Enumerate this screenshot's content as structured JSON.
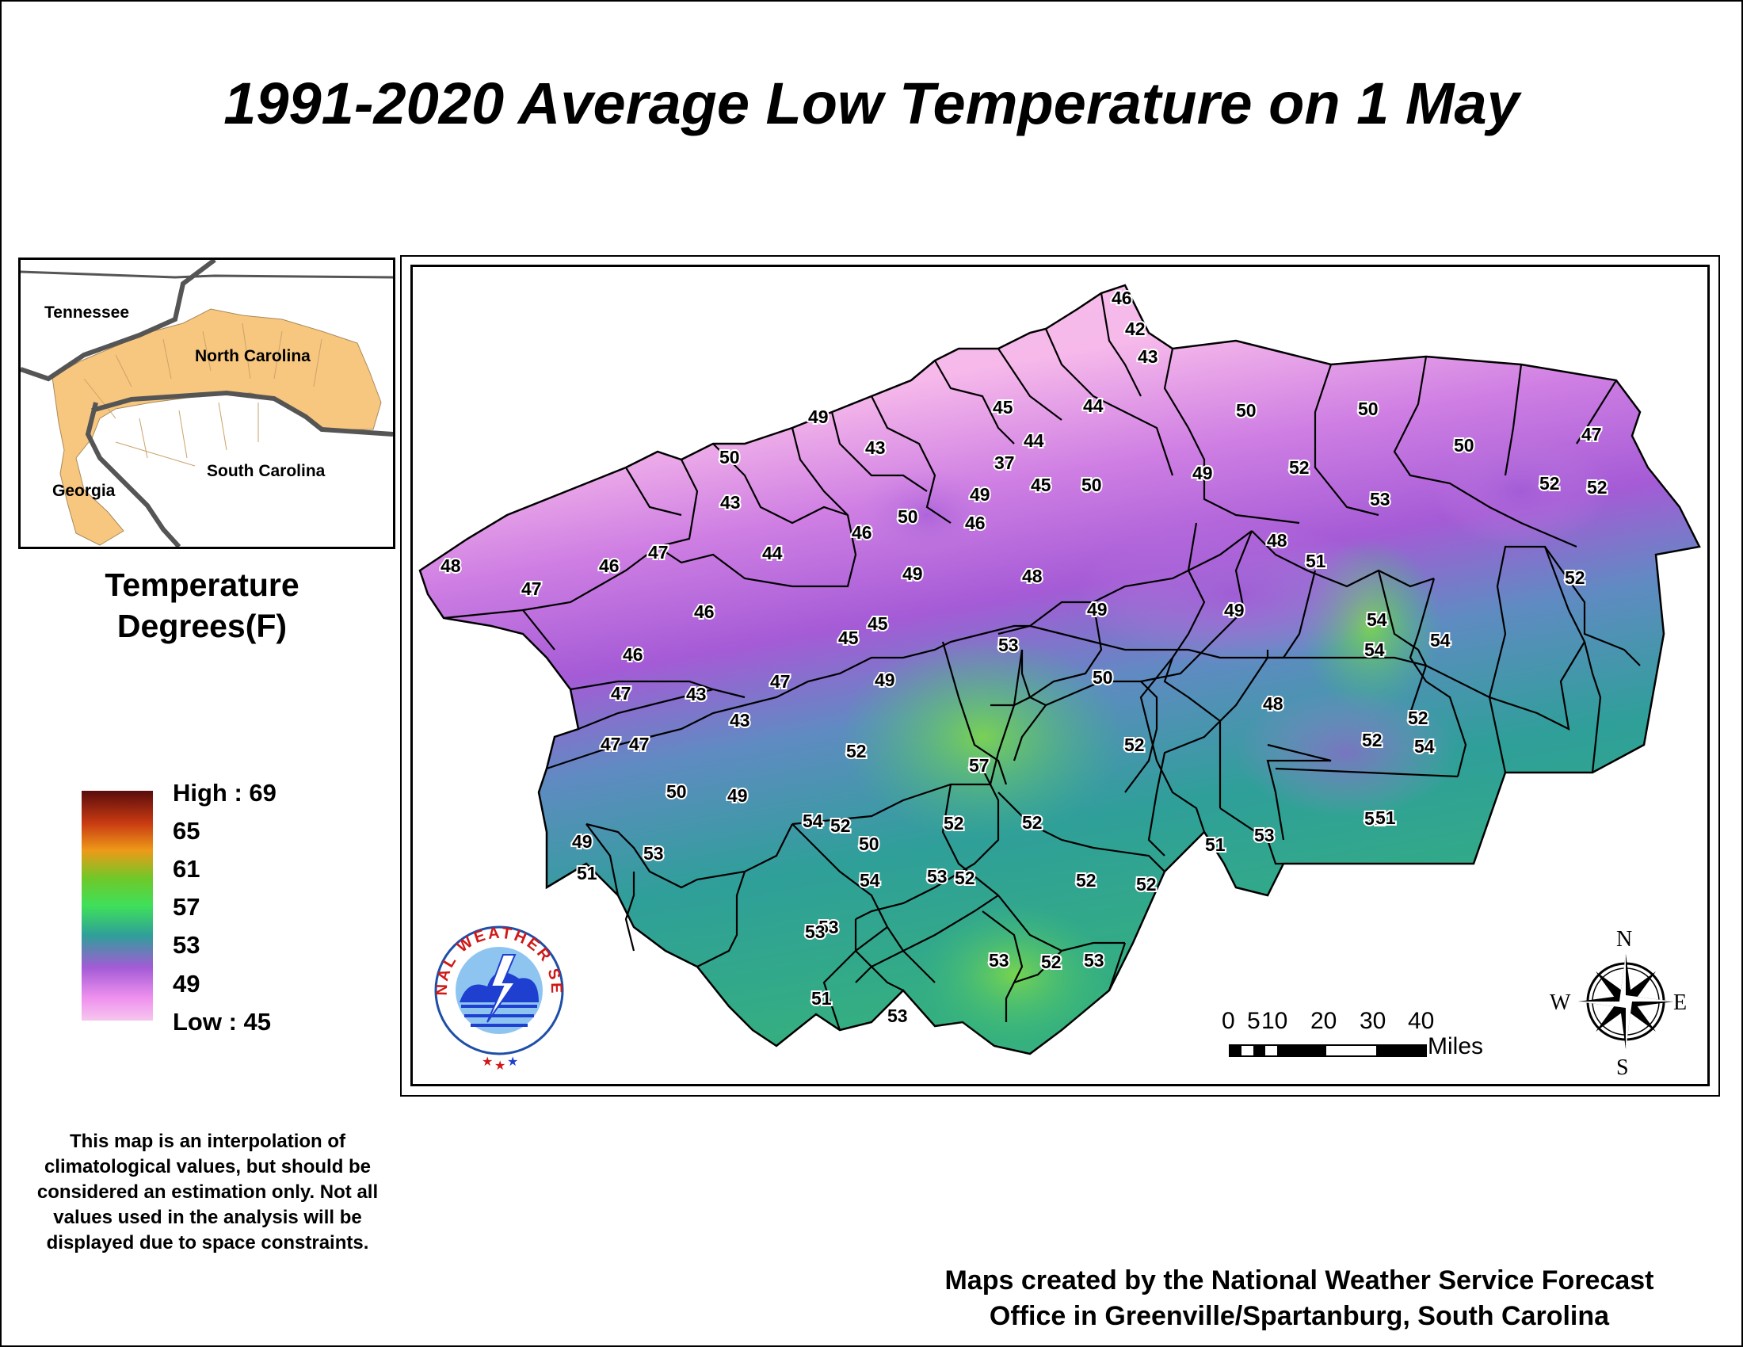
{
  "title": "1991-2020 Average Low Temperature on 1 May",
  "inset": {
    "states": [
      "Tennessee",
      "North Carolina",
      "South Carolina",
      "Georgia"
    ]
  },
  "legend": {
    "title_line1": "Temperature",
    "title_line2": "Degrees(F)",
    "high_label": "High : 69",
    "low_label": "Low : 45",
    "ticks": [
      "65",
      "61",
      "57",
      "53",
      "49"
    ],
    "colors": [
      "#5a0c0c",
      "#c83a12",
      "#ee9a18",
      "#70c828",
      "#3fe05a",
      "#2f9f99",
      "#a45bd6",
      "#ee90ee",
      "#f6c6ee"
    ]
  },
  "disclaimer": "This map is an interpolation of climatological values, but should be considered an estimation only. Not all values used in the analysis will be displayed due to space constraints.",
  "credit_line1": "Maps created by the National Weather Service Forecast",
  "credit_line2": "Office in Greenville/Spartanburg, South Carolina",
  "logo_text": "NATIONAL WEATHER SERVICE",
  "scale_bar": {
    "ticks": [
      "0",
      "5",
      "10",
      "20",
      "30",
      "40"
    ],
    "unit": "Miles"
  },
  "compass": {
    "n": "N",
    "e": "E",
    "s": "S",
    "w": "W"
  },
  "station_values": [
    "46",
    "42",
    "43",
    "44",
    "45",
    "44",
    "37",
    "49",
    "43",
    "50",
    "43",
    "44",
    "49",
    "50",
    "46",
    "46",
    "47",
    "48",
    "47",
    "46",
    "46",
    "46",
    "45",
    "45",
    "47",
    "47",
    "43",
    "43",
    "47",
    "47",
    "50",
    "49",
    "49",
    "51",
    "45",
    "50",
    "50",
    "50",
    "49",
    "52",
    "53",
    "47",
    "50",
    "52",
    "52",
    "48",
    "51",
    "49",
    "48",
    "49",
    "49",
    "53",
    "49",
    "54",
    "54",
    "54",
    "52",
    "50",
    "52",
    "52",
    "48",
    "52",
    "52",
    "54",
    "54",
    "52",
    "50",
    "52",
    "53",
    "51",
    "53",
    "51",
    "52",
    "52",
    "54",
    "53",
    "51",
    "53",
    "53",
    "53",
    "52",
    "53",
    "53",
    "51",
    "52",
    "52",
    "57"
  ]
}
